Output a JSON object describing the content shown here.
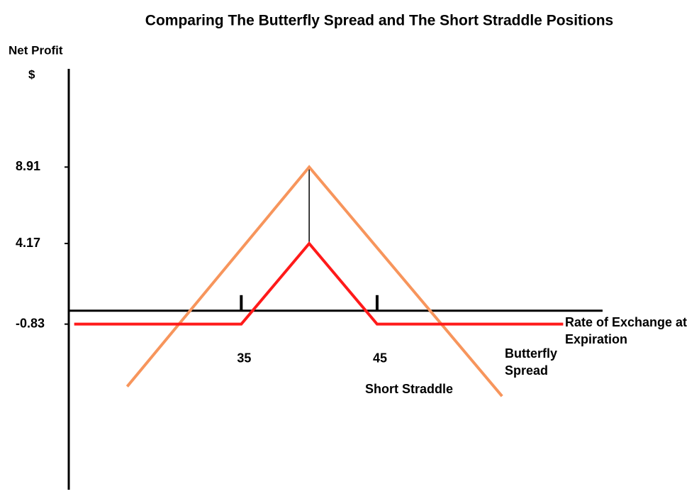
{
  "chart_data": {
    "type": "line",
    "title": "Comparing The Butterfly Spread and The Short Straddle Positions",
    "y_label": "Net Profit",
    "y_unit": "$",
    "x_label": "Rate of Exchange at Expiration",
    "series": [
      {
        "name": "Butterfly Spread",
        "color": "#ff1a1a",
        "x": [
          22.7,
          35,
          40,
          45,
          58.7
        ],
        "values": [
          -0.83,
          -0.83,
          4.17,
          -0.83,
          -0.83
        ]
      },
      {
        "name": "Short Straddle",
        "color": "#f7955c",
        "x": [
          26.6,
          40,
          54.2
        ],
        "values": [
          -4.7,
          8.91,
          -5.3
        ]
      }
    ],
    "xlim": [
      22.3,
      61.6
    ],
    "xticks": [
      35,
      45
    ],
    "ylim": [
      -11.1,
      15.0
    ],
    "yticks": [
      -0.83,
      4.17,
      8.91
    ]
  }
}
